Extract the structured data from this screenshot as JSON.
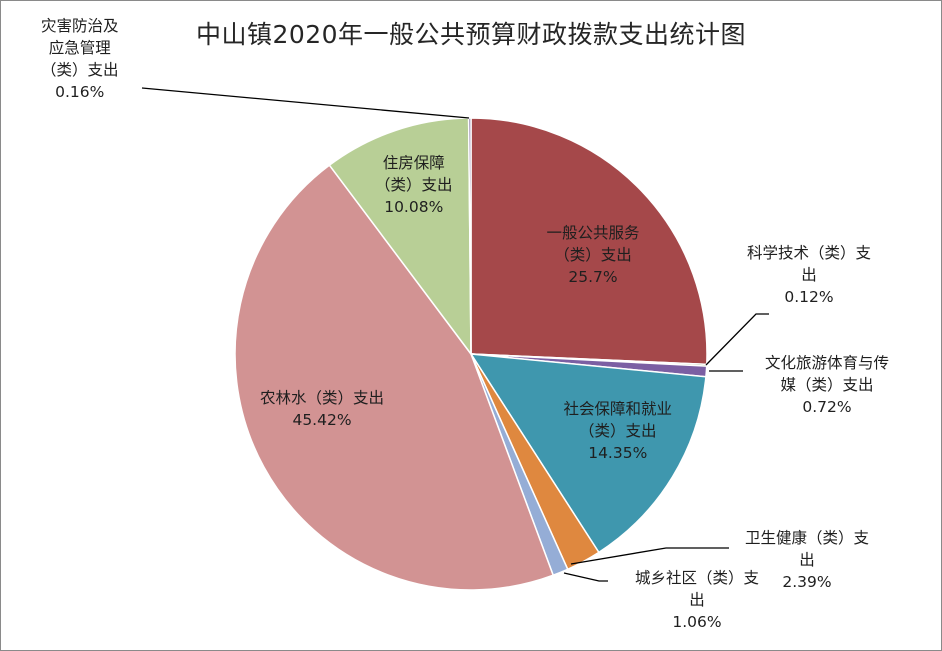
{
  "chart_data": {
    "type": "pie",
    "title": "中山镇2020年一般公共预算财政拨款支出统计图",
    "slices": [
      {
        "lines": [
          "一般公共服务",
          "（类）支出"
        ],
        "value": 25.7,
        "value_label": "25.7%",
        "color": "#A5484A"
      },
      {
        "lines": [
          "科学技术（类）支",
          "出"
        ],
        "value": 0.12,
        "value_label": "0.12%",
        "color": "#6E8E35"
      },
      {
        "lines": [
          "文化旅游体育与传",
          "媒（类）支出"
        ],
        "value": 0.72,
        "value_label": "0.72%",
        "color": "#7B5FA3"
      },
      {
        "lines": [
          "社会保障和就业",
          "（类）支出"
        ],
        "value": 14.35,
        "value_label": "14.35%",
        "color": "#3F97AE"
      },
      {
        "lines": [
          "卫生健康（类）支",
          "出"
        ],
        "value": 2.39,
        "value_label": "2.39%",
        "color": "#DF883F"
      },
      {
        "lines": [
          "城乡社区（类）支",
          "出"
        ],
        "value": 1.06,
        "value_label": "1.06%",
        "color": "#95ADD6"
      },
      {
        "lines": [
          "农林水（类）支出"
        ],
        "value": 45.42,
        "value_label": "45.42%",
        "color": "#D29393"
      },
      {
        "lines": [
          "住房保障",
          "（类）支出"
        ],
        "value": 10.08,
        "value_label": "10.08%",
        "color": "#B8CF96"
      },
      {
        "lines": [
          "灾害防治及",
          "应急管理",
          "（类）支出"
        ],
        "value": 0.16,
        "value_label": "0.16%",
        "color": "#7A6A9E"
      }
    ]
  }
}
